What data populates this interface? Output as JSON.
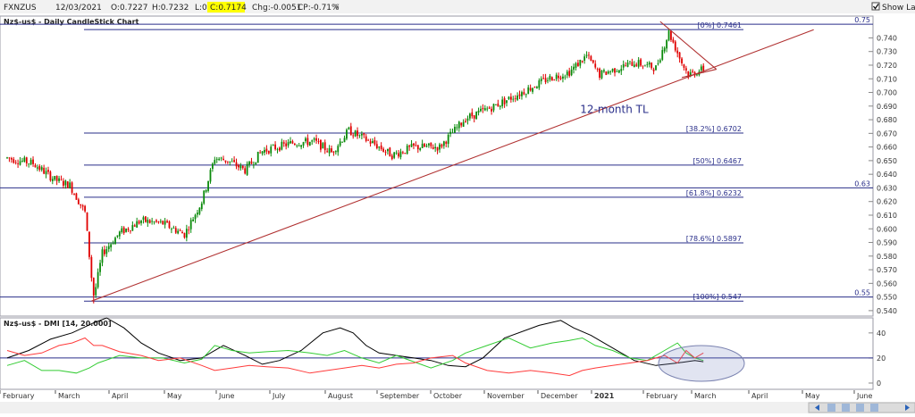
{
  "header": {
    "symbol": "FXNZUS",
    "date": "12/03/2021",
    "open": "O:0.7227",
    "high": "H:0.7232",
    "low": "L:0.7149",
    "close": "C:0.7174",
    "chg": "Chg:-0.0051",
    "cp": "CP:-0.71%",
    "show_last": "Show Last"
  },
  "colors": {
    "up": "#0a8a0a",
    "down": "#e00000",
    "fib": "#2a2f8a",
    "trend": "#b03030",
    "close_badge": "#ffff00",
    "plus_di": "#33cc33",
    "minus_di": "#ff3b3b",
    "adx": "#000000",
    "panel_border": "#9a9aa6",
    "axis_text": "#333333"
  },
  "chart_data": [
    {
      "type": "candlestick",
      "title": "Nz$-us$ - Daily CandleStick Chart",
      "x_months": [
        "February",
        "March",
        "April",
        "May",
        "June",
        "July",
        "August",
        "September",
        "October",
        "November",
        "December",
        "2021",
        "February",
        "March",
        "April",
        "May",
        "June"
      ],
      "ylim": [
        0.536,
        0.756
      ],
      "y_ticks": [
        "0.740",
        "0.730",
        "0.720",
        "0.710",
        "0.700",
        "0.690",
        "0.680",
        "0.670",
        "0.660",
        "0.650",
        "0.640",
        "0.630",
        "0.620",
        "0.610",
        "0.600",
        "0.590",
        "0.580",
        "0.570",
        "0.560",
        "0.550",
        "0.540"
      ],
      "y_tick_values": [
        0.74,
        0.73,
        0.72,
        0.71,
        0.7,
        0.69,
        0.68,
        0.67,
        0.66,
        0.65,
        0.64,
        0.63,
        0.62,
        0.61,
        0.6,
        0.59,
        0.58,
        0.57,
        0.56,
        0.55,
        0.54
      ],
      "price_path": [
        {
          "d": 0,
          "v": 0.652
        },
        {
          "d": 12,
          "v": 0.648
        },
        {
          "d": 22,
          "v": 0.636
        },
        {
          "d": 29,
          "v": 0.632
        },
        {
          "d": 36,
          "v": 0.612
        },
        {
          "d": 40,
          "v": 0.549
        },
        {
          "d": 44,
          "v": 0.582
        },
        {
          "d": 52,
          "v": 0.597
        },
        {
          "d": 62,
          "v": 0.606
        },
        {
          "d": 72,
          "v": 0.604
        },
        {
          "d": 82,
          "v": 0.596
        },
        {
          "d": 90,
          "v": 0.62
        },
        {
          "d": 96,
          "v": 0.652
        },
        {
          "d": 102,
          "v": 0.65
        },
        {
          "d": 110,
          "v": 0.643
        },
        {
          "d": 118,
          "v": 0.657
        },
        {
          "d": 132,
          "v": 0.663
        },
        {
          "d": 142,
          "v": 0.664
        },
        {
          "d": 150,
          "v": 0.656
        },
        {
          "d": 158,
          "v": 0.672
        },
        {
          "d": 170,
          "v": 0.662
        },
        {
          "d": 178,
          "v": 0.654
        },
        {
          "d": 188,
          "v": 0.66
        },
        {
          "d": 200,
          "v": 0.66
        },
        {
          "d": 212,
          "v": 0.681
        },
        {
          "d": 224,
          "v": 0.689
        },
        {
          "d": 238,
          "v": 0.7
        },
        {
          "d": 250,
          "v": 0.71
        },
        {
          "d": 260,
          "v": 0.715
        },
        {
          "d": 268,
          "v": 0.727
        },
        {
          "d": 274,
          "v": 0.713
        },
        {
          "d": 290,
          "v": 0.722
        },
        {
          "d": 300,
          "v": 0.718
        },
        {
          "d": 306,
          "v": 0.744
        },
        {
          "d": 312,
          "v": 0.722
        },
        {
          "d": 315,
          "v": 0.713
        },
        {
          "d": 322,
          "v": 0.717
        }
      ],
      "horizontal_lines": [
        {
          "label": "0.75",
          "value": 0.75
        },
        {
          "label": "0.63",
          "value": 0.63
        },
        {
          "label": "0.55",
          "value": 0.55
        }
      ],
      "fib_levels": [
        {
          "label": "[0%] 0.7461",
          "value": 0.7461
        },
        {
          "label": "[38.2%] 0.6702",
          "value": 0.6702
        },
        {
          "label": "[50%] 0.6467",
          "value": 0.6467
        },
        {
          "label": "[61.8%] 0.6232",
          "value": 0.6232
        },
        {
          "label": "[78.6%] 0.5897",
          "value": 0.5897
        },
        {
          "label": "[100%] 0.547",
          "value": 0.547
        }
      ],
      "trendline": {
        "label": "12-month TL",
        "from": {
          "d": 39,
          "v": 0.547
        },
        "to": {
          "d": 373,
          "v": 0.746
        }
      },
      "triangle": {
        "upper": {
          "from": {
            "d": 302,
            "v": 0.752
          },
          "to": {
            "d": 328,
            "v": 0.717
          }
        },
        "lower": {
          "from": {
            "d": 312,
            "v": 0.711
          },
          "to": {
            "d": 328,
            "v": 0.717
          }
        }
      }
    },
    {
      "type": "line",
      "title": "Nz$-us$ - DMI [14, 20.000]",
      "y_ticks": [
        "40",
        "20",
        "0"
      ],
      "y_tick_values": [
        40,
        20,
        0
      ],
      "ylim": [
        -5,
        52
      ],
      "reference_line": 20,
      "series": [
        {
          "key": "adx",
          "points": [
            [
              0,
              20
            ],
            [
              10,
              26
            ],
            [
              20,
              35
            ],
            [
              30,
              40
            ],
            [
              40,
              48
            ],
            [
              46,
              52
            ],
            [
              54,
              44
            ],
            [
              62,
              32
            ],
            [
              70,
              24
            ],
            [
              80,
              18
            ],
            [
              90,
              20
            ],
            [
              100,
              30
            ],
            [
              110,
              22
            ],
            [
              118,
              15
            ],
            [
              126,
              18
            ],
            [
              136,
              26
            ],
            [
              146,
              40
            ],
            [
              154,
              44
            ],
            [
              160,
              40
            ],
            [
              166,
              30
            ],
            [
              172,
              24
            ],
            [
              180,
              22
            ],
            [
              188,
              20
            ],
            [
              196,
              18
            ],
            [
              204,
              14
            ],
            [
              212,
              13
            ],
            [
              220,
              20
            ],
            [
              230,
              36
            ],
            [
              246,
              46
            ],
            [
              256,
              50
            ],
            [
              262,
              44
            ],
            [
              270,
              38
            ],
            [
              280,
              28
            ],
            [
              290,
              18
            ],
            [
              300,
              14
            ],
            [
              310,
              16
            ],
            [
              318,
              18
            ],
            [
              322,
              17
            ]
          ]
        },
        {
          "key": "plus_di",
          "points": [
            [
              0,
              14
            ],
            [
              8,
              18
            ],
            [
              16,
              10
            ],
            [
              24,
              10
            ],
            [
              32,
              8
            ],
            [
              38,
              12
            ],
            [
              42,
              16
            ],
            [
              52,
              22
            ],
            [
              62,
              20
            ],
            [
              72,
              20
            ],
            [
              82,
              16
            ],
            [
              90,
              19
            ],
            [
              96,
              30
            ],
            [
              104,
              26
            ],
            [
              112,
              24
            ],
            [
              120,
              25
            ],
            [
              130,
              26
            ],
            [
              140,
              24
            ],
            [
              148,
              22
            ],
            [
              156,
              26
            ],
            [
              164,
              20
            ],
            [
              172,
              16
            ],
            [
              180,
              22
            ],
            [
              188,
              17
            ],
            [
              196,
              12
            ],
            [
              206,
              18
            ],
            [
              212,
              24
            ],
            [
              222,
              30
            ],
            [
              232,
              36
            ],
            [
              242,
              28
            ],
            [
              252,
              32
            ],
            [
              260,
              34
            ],
            [
              266,
              36
            ],
            [
              272,
              30
            ],
            [
              280,
              26
            ],
            [
              288,
              20
            ],
            [
              296,
              18
            ],
            [
              304,
              26
            ],
            [
              310,
              32
            ],
            [
              314,
              24
            ],
            [
              318,
              20
            ],
            [
              322,
              18
            ]
          ]
        },
        {
          "key": "minus_di",
          "points": [
            [
              0,
              26
            ],
            [
              8,
              22
            ],
            [
              16,
              24
            ],
            [
              24,
              30
            ],
            [
              30,
              32
            ],
            [
              36,
              36
            ],
            [
              40,
              30
            ],
            [
              44,
              30
            ],
            [
              52,
              25
            ],
            [
              62,
              22
            ],
            [
              70,
              18
            ],
            [
              80,
              20
            ],
            [
              90,
              14
            ],
            [
              96,
              10
            ],
            [
              104,
              12
            ],
            [
              112,
              14
            ],
            [
              120,
              13
            ],
            [
              130,
              12
            ],
            [
              140,
              8
            ],
            [
              148,
              10
            ],
            [
              156,
              12
            ],
            [
              164,
              14
            ],
            [
              172,
              12
            ],
            [
              180,
              15
            ],
            [
              188,
              16
            ],
            [
              196,
              20
            ],
            [
              206,
              22
            ],
            [
              212,
              16
            ],
            [
              222,
              10
            ],
            [
              232,
              8
            ],
            [
              242,
              10
            ],
            [
              252,
              8
            ],
            [
              260,
              6
            ],
            [
              266,
              10
            ],
            [
              272,
              12
            ],
            [
              280,
              14
            ],
            [
              288,
              16
            ],
            [
              296,
              18
            ],
            [
              304,
              22
            ],
            [
              310,
              16
            ],
            [
              314,
              26
            ],
            [
              318,
              20
            ],
            [
              322,
              24
            ]
          ]
        }
      ]
    }
  ]
}
